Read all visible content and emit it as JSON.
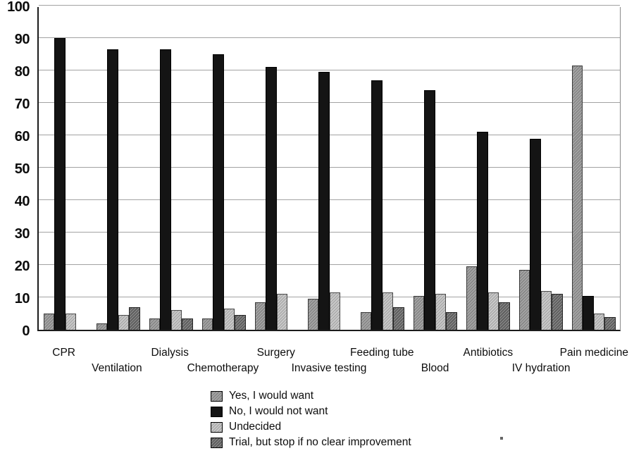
{
  "chart_data": {
    "type": "bar",
    "title": "",
    "xlabel": "",
    "ylabel": "",
    "ylim": [
      0,
      100
    ],
    "yticks": [
      0,
      10,
      20,
      30,
      40,
      50,
      60,
      70,
      80,
      90,
      100
    ],
    "grid": true,
    "legend_position": "bottom",
    "categories": [
      "CPR",
      "Ventilation",
      "Dialysis",
      "Chemotherapy",
      "Surgery",
      "Invasive testing",
      "Feeding tube",
      "Blood",
      "Antibiotics",
      "IV hydration",
      "Pain medicine"
    ],
    "series": [
      {
        "name": "Yes, I would want",
        "color": "#8f8f8f",
        "hatched": true,
        "values": [
          5,
          2,
          3.5,
          3.5,
          8.5,
          9.5,
          5.5,
          10.5,
          19.5,
          18.5,
          81.5
        ]
      },
      {
        "name": "No, I would not want",
        "color": "#141414",
        "hatched": false,
        "values": [
          90,
          86.5,
          86.5,
          85,
          81,
          79.5,
          77,
          74,
          61,
          59,
          10.5
        ]
      },
      {
        "name": "Undecided",
        "color": "#c9c9c9",
        "hatched": true,
        "values": [
          5,
          4.5,
          6,
          6.5,
          11,
          11.5,
          11.5,
          11,
          11.5,
          12,
          5
        ]
      },
      {
        "name": "Trial, but stop if no clear improvement",
        "color": "#5e5e5e",
        "hatched": true,
        "values": [
          0,
          7,
          3.5,
          4.5,
          0,
          0,
          7,
          5.5,
          8.5,
          11,
          4
        ]
      }
    ]
  }
}
